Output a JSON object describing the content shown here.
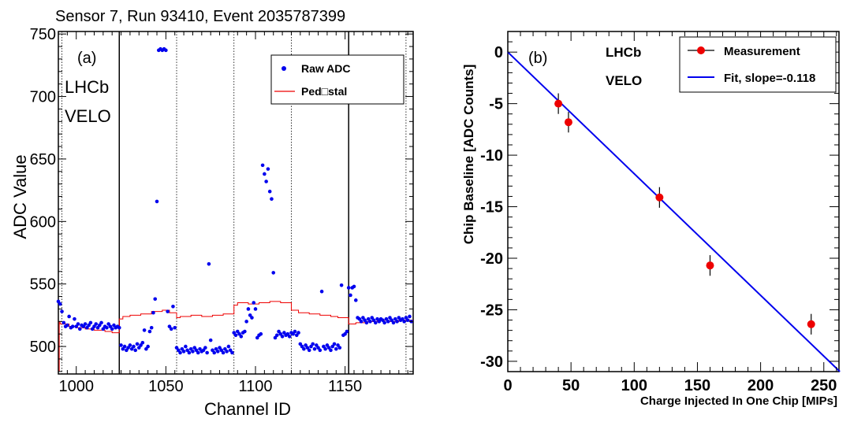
{
  "chart_data": [
    {
      "type": "scatter",
      "panel_label": "(a)",
      "title": "Sensor 7,  Run 93410,  Event 2035787399",
      "xlabel": "Channel ID",
      "ylabel": "ADC Value",
      "xlim": [
        990,
        1188
      ],
      "ylim": [
        478,
        752
      ],
      "xticks": [
        1000,
        1050,
        1100,
        1150
      ],
      "yticks": [
        500,
        550,
        600,
        650,
        700,
        750
      ],
      "annotations": [
        "LHCb",
        "VELO"
      ],
      "legend": {
        "placement": "top-right",
        "entries": [
          "Raw ADC",
          "Ped□stal"
        ]
      },
      "colors": {
        "raw": "#0000ee",
        "pedestal": "#ee0000"
      },
      "chip_boundaries": [
        1024,
        1152
      ],
      "port_boundaries": [
        992,
        1056,
        1088,
        1120,
        1184
      ],
      "series": [
        {
          "name": "Raw ADC",
          "points": [
            [
              990,
              536
            ],
            [
              991,
              534
            ],
            [
              992,
              528
            ],
            [
              993,
              519
            ],
            [
              994,
              516
            ],
            [
              995,
              517
            ],
            [
              996,
              524
            ],
            [
              997,
              515
            ],
            [
              998,
              516
            ],
            [
              999,
              522
            ],
            [
              1000,
              516
            ],
            [
              1001,
              518
            ],
            [
              1002,
              514
            ],
            [
              1003,
              517
            ],
            [
              1004,
              516
            ],
            [
              1005,
              518
            ],
            [
              1006,
              515
            ],
            [
              1007,
              517
            ],
            [
              1008,
              519
            ],
            [
              1009,
              514
            ],
            [
              1010,
              516
            ],
            [
              1011,
              518
            ],
            [
              1012,
              515
            ],
            [
              1013,
              517
            ],
            [
              1014,
              519
            ],
            [
              1015,
              514
            ],
            [
              1016,
              516
            ],
            [
              1017,
              515
            ],
            [
              1018,
              518
            ],
            [
              1019,
              516
            ],
            [
              1020,
              514
            ],
            [
              1021,
              517
            ],
            [
              1022,
              515
            ],
            [
              1023,
              516
            ],
            [
              1024,
              515
            ],
            [
              1025,
              501
            ],
            [
              1026,
              498
            ],
            [
              1027,
              500
            ],
            [
              1028,
              497
            ],
            [
              1029,
              499
            ],
            [
              1030,
              501
            ],
            [
              1031,
              498
            ],
            [
              1032,
              500
            ],
            [
              1033,
              497
            ],
            [
              1034,
              502
            ],
            [
              1035,
              499
            ],
            [
              1036,
              501
            ],
            [
              1037,
              503
            ],
            [
              1038,
              513
            ],
            [
              1039,
              498
            ],
            [
              1040,
              500
            ],
            [
              1041,
              512
            ],
            [
              1042,
              515
            ],
            [
              1043,
              527
            ],
            [
              1044,
              538
            ],
            [
              1045,
              616
            ],
            [
              1046,
              737
            ],
            [
              1047,
              738
            ],
            [
              1048,
              737
            ],
            [
              1049,
              738
            ],
            [
              1050,
              737
            ],
            [
              1051,
              528
            ],
            [
              1052,
              516
            ],
            [
              1053,
              514
            ],
            [
              1054,
              532
            ],
            [
              1055,
              515
            ],
            [
              1056,
              499
            ],
            [
              1057,
              497
            ],
            [
              1058,
              495
            ],
            [
              1059,
              498
            ],
            [
              1060,
              496
            ],
            [
              1061,
              500
            ],
            [
              1062,
              497
            ],
            [
              1063,
              495
            ],
            [
              1064,
              498
            ],
            [
              1065,
              496
            ],
            [
              1066,
              499
            ],
            [
              1067,
              497
            ],
            [
              1068,
              495
            ],
            [
              1069,
              498
            ],
            [
              1070,
              496
            ],
            [
              1071,
              497
            ],
            [
              1072,
              499
            ],
            [
              1073,
              495
            ],
            [
              1074,
              566
            ],
            [
              1075,
              505
            ],
            [
              1076,
              497
            ],
            [
              1077,
              495
            ],
            [
              1078,
              498
            ],
            [
              1079,
              496
            ],
            [
              1080,
              499
            ],
            [
              1081,
              497
            ],
            [
              1082,
              495
            ],
            [
              1083,
              498
            ],
            [
              1084,
              496
            ],
            [
              1085,
              500
            ],
            [
              1086,
              497
            ],
            [
              1087,
              495
            ],
            [
              1088,
              511
            ],
            [
              1089,
              509
            ],
            [
              1090,
              512
            ],
            [
              1091,
              510
            ],
            [
              1092,
              508
            ],
            [
              1093,
              511
            ],
            [
              1094,
              512
            ],
            [
              1095,
              520
            ],
            [
              1096,
              530
            ],
            [
              1097,
              525
            ],
            [
              1098,
              523
            ],
            [
              1099,
              535
            ],
            [
              1100,
              530
            ],
            [
              1101,
              507
            ],
            [
              1102,
              509
            ],
            [
              1103,
              510
            ],
            [
              1104,
              645
            ],
            [
              1105,
              638
            ],
            [
              1106,
              632
            ],
            [
              1107,
              642
            ],
            [
              1108,
              624
            ],
            [
              1109,
              618
            ],
            [
              1110,
              559
            ],
            [
              1111,
              507
            ],
            [
              1112,
              509
            ],
            [
              1113,
              512
            ],
            [
              1114,
              510
            ],
            [
              1115,
              508
            ],
            [
              1116,
              511
            ],
            [
              1117,
              509
            ],
            [
              1118,
              510
            ],
            [
              1119,
              508
            ],
            [
              1120,
              511
            ],
            [
              1121,
              510
            ],
            [
              1122,
              512
            ],
            [
              1123,
              509
            ],
            [
              1124,
              511
            ],
            [
              1125,
              502
            ],
            [
              1126,
              500
            ],
            [
              1127,
              498
            ],
            [
              1128,
              501
            ],
            [
              1129,
              499
            ],
            [
              1130,
              497
            ],
            [
              1131,
              500
            ],
            [
              1132,
              502
            ],
            [
              1133,
              498
            ],
            [
              1134,
              501
            ],
            [
              1135,
              499
            ],
            [
              1136,
              497
            ],
            [
              1137,
              544
            ],
            [
              1138,
              500
            ],
            [
              1139,
              498
            ],
            [
              1140,
              501
            ],
            [
              1141,
              499
            ],
            [
              1142,
              497
            ],
            [
              1143,
              500
            ],
            [
              1144,
              502
            ],
            [
              1145,
              498
            ],
            [
              1146,
              501
            ],
            [
              1147,
              499
            ],
            [
              1148,
              549
            ],
            [
              1149,
              509
            ],
            [
              1150,
              510
            ],
            [
              1151,
              512
            ],
            [
              1152,
              547
            ],
            [
              1153,
              541
            ],
            [
              1154,
              547
            ],
            [
              1155,
              548
            ],
            [
              1156,
              537
            ],
            [
              1157,
              523
            ],
            [
              1158,
              522
            ],
            [
              1159,
              520
            ],
            [
              1160,
              523
            ],
            [
              1161,
              521
            ],
            [
              1162,
              519
            ],
            [
              1163,
              522
            ],
            [
              1164,
              520
            ],
            [
              1165,
              523
            ],
            [
              1166,
              521
            ],
            [
              1167,
              519
            ],
            [
              1168,
              522
            ],
            [
              1169,
              520
            ],
            [
              1170,
              522
            ],
            [
              1171,
              521
            ],
            [
              1172,
              519
            ],
            [
              1173,
              522
            ],
            [
              1174,
              520
            ],
            [
              1175,
              523
            ],
            [
              1176,
              521
            ],
            [
              1177,
              519
            ],
            [
              1178,
              522
            ],
            [
              1179,
              520
            ],
            [
              1180,
              523
            ],
            [
              1181,
              521
            ],
            [
              1182,
              522
            ],
            [
              1183,
              520
            ],
            [
              1184,
              523
            ],
            [
              1185,
              521
            ],
            [
              1186,
              524
            ],
            [
              1187,
              520
            ]
          ]
        },
        {
          "name": "Ped□stal",
          "steps": [
            [
              990,
              520
            ],
            [
              991,
              518
            ],
            [
              996,
              516
            ],
            [
              1000,
              515
            ],
            [
              1005,
              514
            ],
            [
              1010,
              513
            ],
            [
              1016,
              512
            ],
            [
              1020,
              511
            ],
            [
              1024,
              522
            ],
            [
              1026,
              524
            ],
            [
              1030,
              525
            ],
            [
              1036,
              526
            ],
            [
              1042,
              528
            ],
            [
              1048,
              529
            ],
            [
              1052,
              527
            ],
            [
              1056,
              523
            ],
            [
              1058,
              524
            ],
            [
              1064,
              525
            ],
            [
              1070,
              524
            ],
            [
              1076,
              525
            ],
            [
              1082,
              526
            ],
            [
              1088,
              533
            ],
            [
              1090,
              535
            ],
            [
              1096,
              534
            ],
            [
              1102,
              535
            ],
            [
              1108,
              536
            ],
            [
              1114,
              535
            ],
            [
              1120,
              529
            ],
            [
              1124,
              527
            ],
            [
              1130,
              526
            ],
            [
              1136,
              525
            ],
            [
              1142,
              524
            ],
            [
              1146,
              523
            ],
            [
              1152,
              518
            ],
            [
              1156,
              519
            ],
            [
              1162,
              520
            ],
            [
              1168,
              521
            ],
            [
              1174,
              520
            ],
            [
              1180,
              521
            ],
            [
              1188,
              521
            ]
          ]
        }
      ]
    },
    {
      "type": "scatter",
      "panel_label": "(b)",
      "title": "",
      "xlabel": "Charge Injected In One Chip [MIPs]",
      "ylabel": "Chip Baseline [ADC Counts]",
      "xlim": [
        0,
        262
      ],
      "ylim": [
        -31,
        2
      ],
      "xticks": [
        0,
        50,
        100,
        150,
        200,
        250
      ],
      "yticks": [
        0,
        -5,
        -10,
        -15,
        -20,
        -25,
        -30
      ],
      "annotations": [
        "LHCb",
        "VELO"
      ],
      "legend": {
        "placement": "top-right",
        "entries": [
          "Measurement",
          "Fit, slope=-0.118"
        ]
      },
      "colors": {
        "measurement": "#ee0000",
        "fit": "#0000ee"
      },
      "series": [
        {
          "name": "Measurement",
          "x": [
            40,
            48,
            120,
            160,
            240
          ],
          "y": [
            -5.0,
            -6.8,
            -14.1,
            -20.7,
            -26.4
          ],
          "yerr": [
            1.0,
            1.0,
            1.0,
            1.0,
            1.0
          ]
        },
        {
          "name": "Fit, slope=-0.118",
          "slope": -0.118,
          "intercept": 0
        }
      ]
    }
  ]
}
